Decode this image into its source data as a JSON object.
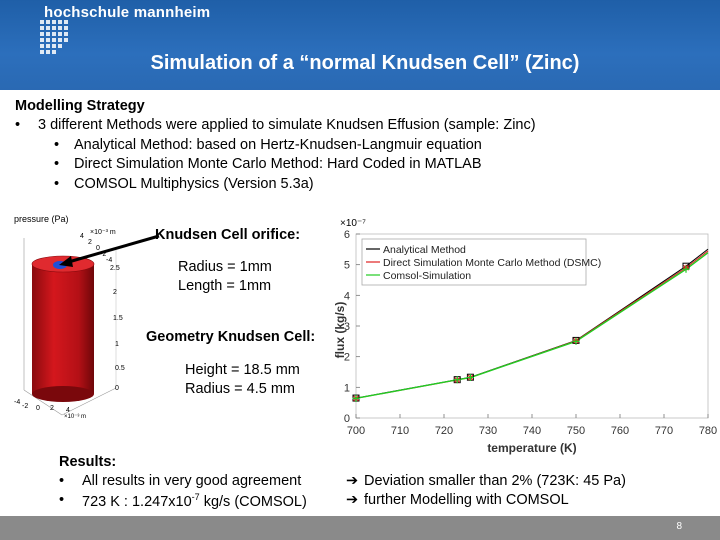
{
  "header": {
    "logo_text": "hochschule mannheim",
    "title": "Simulation of a “normal Knudsen Cell” (Zinc)"
  },
  "content": {
    "heading": "Modelling Strategy",
    "bullet_main": "3 different Methods were applied to simulate Knudsen Effusion (sample: Zinc)",
    "sub_bullets": [
      "Analytical Method: based on Hertz-Knudsen-Langmuir equation",
      "Direct Simulation Monte Carlo Method: Hard Coded in MATLAB",
      "COMSOL Multiphysics (Version 5.3a)"
    ]
  },
  "cell_figure": {
    "axis_label": "pressure (Pa)",
    "tick_labels": [
      "4",
      "2",
      "0",
      "-2",
      "-4",
      "2.5",
      "2",
      "1.5",
      "1",
      "0.5",
      "0",
      "-4",
      "-2",
      "0",
      "2",
      "4"
    ],
    "exp_label_top": "×10⁻³ m",
    "exp_label_bottom": "×10⁻³ m"
  },
  "annotations": {
    "orifice_title": "Knudsen Cell orifice:",
    "orifice_radius": "Radius = 1mm",
    "orifice_length": "Length = 1mm",
    "geometry_title": "Geometry Knudsen Cell:",
    "geometry_height": "Height = 18.5 mm",
    "geometry_radius": "Radius =  4.5  mm"
  },
  "results": {
    "heading": "Results:",
    "line1_left": "All results in very good agreement",
    "line1_right": "Deviation smaller than 2% (723K: 45 Pa)",
    "line2_left_a": "723 K : 1.247x10",
    "line2_sup": "-7",
    "line2_left_b": " kg/s (COMSOL)",
    "line2_right": "further Modelling with COMSOL"
  },
  "footer": {
    "page_number": "8"
  },
  "colors": {
    "header_blue": "#2c6fbc",
    "cell_red": "#c8141a",
    "orifice_blue": "#1f4fd8"
  },
  "chart_data": {
    "type": "line",
    "xlabel": "temperature (K)",
    "ylabel": "flux (kg/s)",
    "exponent_label": "×10⁻⁷",
    "xlim": [
      700,
      780
    ],
    "ylim": [
      0,
      6
    ],
    "xticks": [
      700,
      710,
      720,
      730,
      740,
      750,
      760,
      770,
      780
    ],
    "yticks": [
      0,
      1,
      2,
      3,
      4,
      5,
      6
    ],
    "legend_position": "top-left",
    "series": [
      {
        "name": "Analytical Method",
        "color": "#000000",
        "marker": "square",
        "x": [
          700,
          723,
          726,
          750,
          775
        ],
        "y": [
          0.65,
          1.25,
          1.33,
          2.53,
          4.95
        ]
      },
      {
        "name": "Direct Simulation Monte Carlo Method (DSMC)",
        "color": "#e02020",
        "marker": "star",
        "x": [
          700,
          723,
          726,
          750,
          775
        ],
        "y": [
          0.64,
          1.24,
          1.32,
          2.52,
          4.9
        ]
      },
      {
        "name": "Comsol-Simulation",
        "color": "#22cc22",
        "marker": "plus",
        "x": [
          700,
          723,
          726,
          750,
          775
        ],
        "y": [
          0.64,
          1.247,
          1.32,
          2.5,
          4.85
        ]
      }
    ]
  }
}
